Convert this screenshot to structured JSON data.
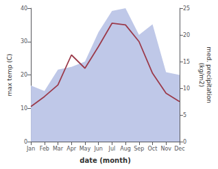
{
  "chart_data": {
    "type": "line",
    "categories": [
      "Jan",
      "Feb",
      "Mar",
      "Apr",
      "May",
      "Jun",
      "Jul",
      "Aug",
      "Sep",
      "Oct",
      "Nov",
      "Dec"
    ],
    "xlabel": "date (month)",
    "ylabel": "max temp (C)",
    "y2label": "med. precipitation\n(kg/m2)",
    "series": [
      {
        "type": "area",
        "axis": "y2",
        "color": "#bfc8e8",
        "values": [
          10.5,
          9.5,
          13.5,
          14.0,
          15.0,
          20.5,
          24.5,
          25.0,
          20.0,
          22.0,
          13.0,
          12.5
        ]
      },
      {
        "type": "line",
        "axis": "y",
        "color": "#9b3a4a",
        "values": [
          10.5,
          13.5,
          17.0,
          26.0,
          22.0,
          28.5,
          35.5,
          35.0,
          30.0,
          20.5,
          14.5,
          12.0
        ]
      }
    ],
    "ylim": [
      0,
      40
    ],
    "yticks": [
      0,
      10,
      20,
      30,
      40
    ],
    "y2lim": [
      0,
      25
    ],
    "y2ticks": [
      0,
      5,
      10,
      15,
      20,
      25
    ],
    "grid": false
  }
}
